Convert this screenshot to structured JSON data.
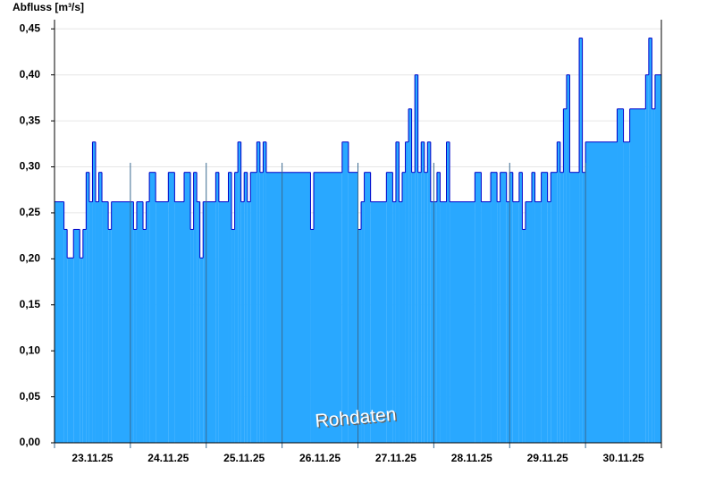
{
  "chart_data": {
    "type": "step-area",
    "y_label": "Abfluss [m³/s]",
    "annotation": "Rohdaten",
    "xlim": [
      0,
      192
    ],
    "xticks": [
      {
        "value": 0,
        "label": "23.11.25"
      },
      {
        "value": 24,
        "label": "24.11.25"
      },
      {
        "value": 48,
        "label": "25.11.25"
      },
      {
        "value": 72,
        "label": "26.11.25"
      },
      {
        "value": 96,
        "label": "27.11.25"
      },
      {
        "value": 120,
        "label": "28.11.25"
      },
      {
        "value": 144,
        "label": "29.11.25"
      },
      {
        "value": 168,
        "label": "30.11.25"
      }
    ],
    "ylim": [
      0,
      0.46
    ],
    "yticks": [
      {
        "value": 0,
        "label": "0,00"
      },
      {
        "value": 0.05,
        "label": "0,05"
      },
      {
        "value": 0.1,
        "label": "0,10"
      },
      {
        "value": 0.15,
        "label": "0,15"
      },
      {
        "value": 0.2,
        "label": "0,20"
      },
      {
        "value": 0.25,
        "label": "0,25"
      },
      {
        "value": 0.3,
        "label": "0,30"
      },
      {
        "value": 0.35,
        "label": "0,35"
      },
      {
        "value": 0.4,
        "label": "0,40"
      },
      {
        "value": 0.45,
        "label": "0,45"
      }
    ],
    "grid": true,
    "color": "#29a8ff",
    "edge_color": "#0000c8",
    "x": [
      0,
      3,
      4,
      6,
      8,
      9,
      10,
      11,
      12,
      13,
      14,
      15,
      17,
      18,
      25,
      26,
      28,
      29,
      30,
      32,
      36,
      38,
      41,
      43,
      44,
      45,
      46,
      47,
      51,
      52,
      55,
      56,
      57,
      58,
      59,
      60,
      61,
      62,
      64,
      65,
      66,
      67,
      81,
      82,
      91,
      93,
      96,
      97,
      98,
      100,
      105,
      107,
      108,
      109,
      110,
      111,
      112,
      113,
      114,
      115,
      116,
      117,
      118,
      119,
      121,
      122,
      124,
      125,
      133,
      135,
      138,
      140,
      141,
      143,
      144,
      145,
      147,
      148,
      149,
      151,
      152,
      154,
      156,
      157,
      159,
      160,
      161,
      162,
      163,
      166,
      167,
      168,
      178,
      180,
      182,
      187,
      188,
      189,
      190
    ],
    "values": [
      0.262,
      0.232,
      0.201,
      0.232,
      0.201,
      0.232,
      0.294,
      0.262,
      0.327,
      0.262,
      0.294,
      0.262,
      0.232,
      0.262,
      0.232,
      0.262,
      0.232,
      0.262,
      0.294,
      0.262,
      0.294,
      0.262,
      0.294,
      0.232,
      0.294,
      0.262,
      0.201,
      0.262,
      0.294,
      0.262,
      0.294,
      0.232,
      0.294,
      0.327,
      0.262,
      0.294,
      0.262,
      0.294,
      0.327,
      0.294,
      0.327,
      0.294,
      0.232,
      0.294,
      0.327,
      0.294,
      0.232,
      0.262,
      0.294,
      0.262,
      0.294,
      0.262,
      0.327,
      0.262,
      0.294,
      0.327,
      0.363,
      0.294,
      0.4,
      0.294,
      0.327,
      0.294,
      0.327,
      0.262,
      0.294,
      0.262,
      0.327,
      0.262,
      0.294,
      0.262,
      0.294,
      0.262,
      0.294,
      0.262,
      0.294,
      0.262,
      0.294,
      0.232,
      0.262,
      0.294,
      0.262,
      0.294,
      0.262,
      0.294,
      0.327,
      0.294,
      0.363,
      0.4,
      0.294,
      0.44,
      0.294,
      0.327,
      0.363,
      0.327,
      0.363,
      0.4,
      0.44,
      0.363,
      0.4
    ]
  }
}
